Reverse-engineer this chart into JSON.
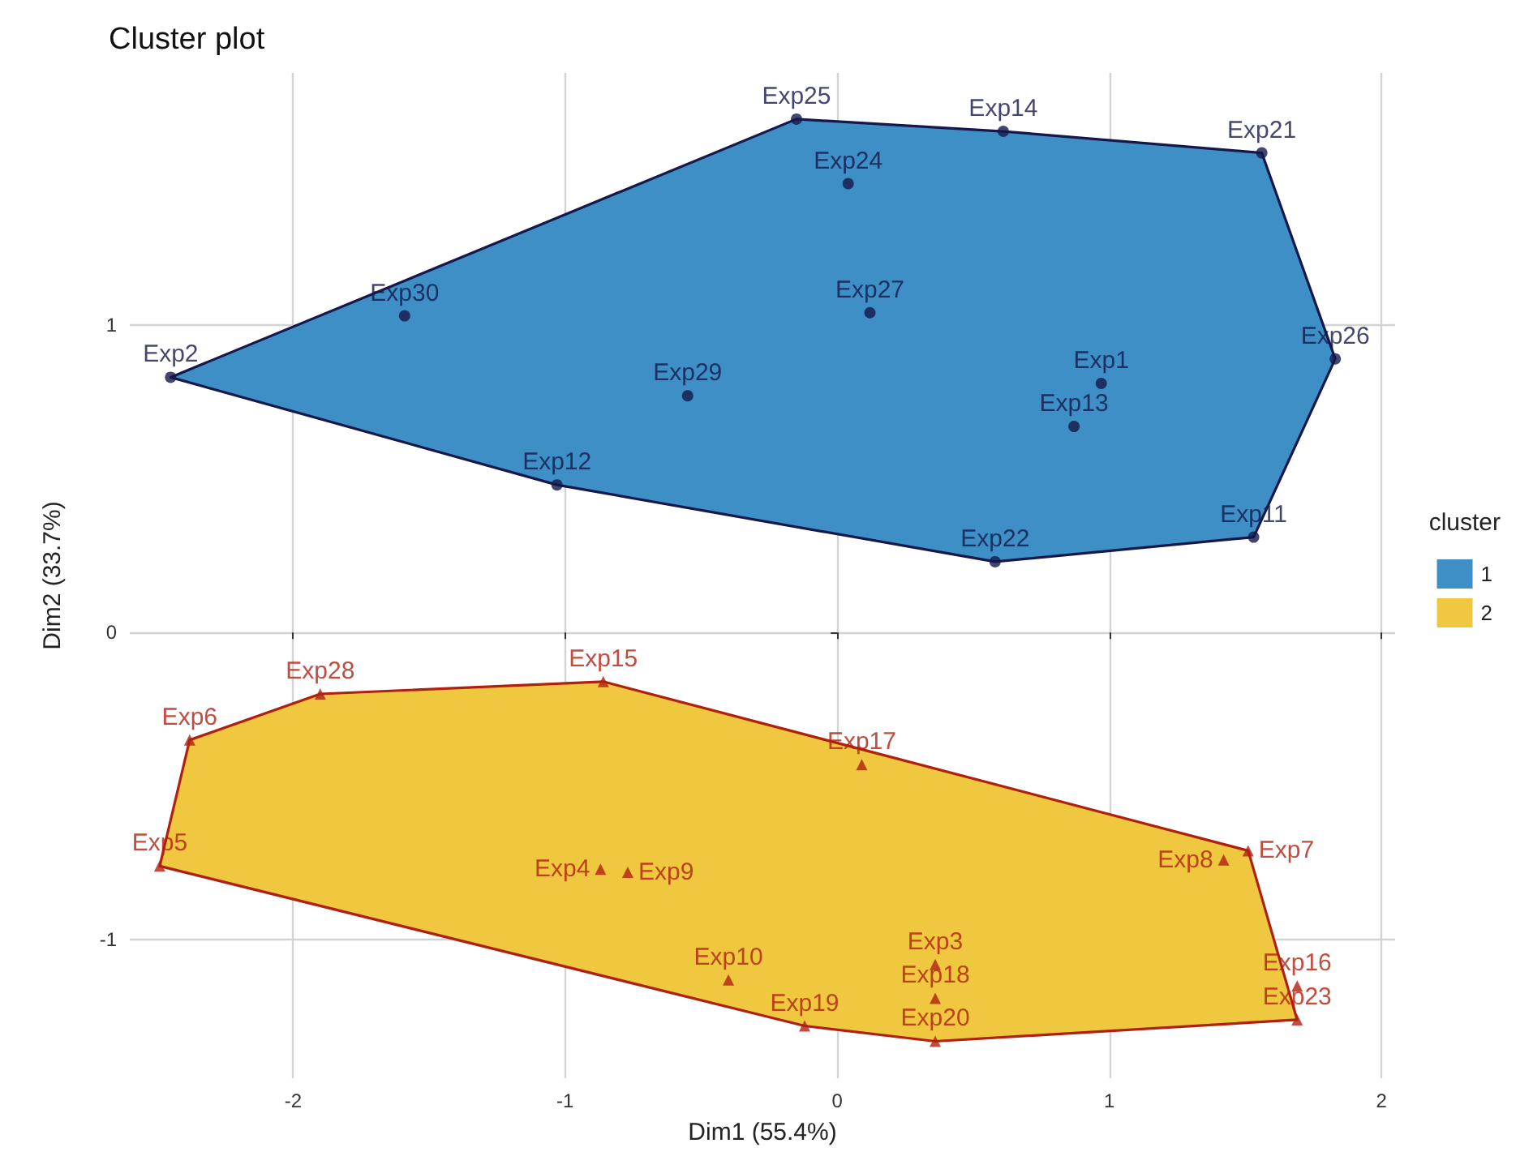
{
  "chart_data": {
    "type": "scatter",
    "title": "Cluster plot",
    "xlabel": "Dim1 (55.4%)",
    "ylabel": "Dim2 (33.7%)",
    "legend_title": "cluster",
    "legend": "right",
    "grid": true,
    "xlim": [
      -2.6,
      2.05
    ],
    "ylim": [
      -1.45,
      1.82
    ],
    "xticks": [
      -2,
      -1,
      0,
      1,
      2
    ],
    "yticks": [
      -1,
      0,
      1
    ],
    "series": [
      {
        "type": "area",
        "name": "1",
        "color": "#3d8fc6",
        "x": [
          -2.45,
          -0.15,
          0.61,
          1.56,
          1.83,
          1.53,
          0.58,
          -1.03
        ],
        "values": [
          0.83,
          1.67,
          1.63,
          1.56,
          0.89,
          0.31,
          0.23,
          0.48
        ]
      },
      {
        "type": "area",
        "name": "2",
        "color": "#efc840",
        "x": [
          -2.49,
          -2.38,
          -1.9,
          -0.86,
          1.51,
          1.69,
          0.36,
          -0.12
        ],
        "values": [
          -0.76,
          -0.35,
          -0.2,
          -0.16,
          -0.71,
          -1.26,
          -1.33,
          -1.28
        ]
      },
      {
        "color": "#14184a",
        "marker": "circle",
        "x": [
          -2.45,
          -1.59,
          -1.03,
          -0.55,
          -0.15,
          0.04,
          0.12,
          0.61,
          1.56,
          1.83,
          0.97,
          0.87,
          0.58,
          1.53
        ],
        "values": [
          0.83,
          1.03,
          0.48,
          0.77,
          1.67,
          1.46,
          1.04,
          1.63,
          1.56,
          0.89,
          0.81,
          0.67,
          0.23,
          0.31
        ],
        "value_labels": [
          "Exp2",
          "Exp30",
          "Exp12",
          "Exp29",
          "Exp25",
          "Exp24",
          "Exp27",
          "Exp14",
          "Exp21",
          "Exp26",
          "Exp1",
          "Exp13",
          "Exp22",
          "Exp11"
        ]
      },
      {
        "color": "#b0200f",
        "marker": "triangle",
        "x": [
          -2.38,
          -1.9,
          -0.86,
          -2.49,
          -0.87,
          -0.77,
          -0.4,
          -0.12,
          0.09,
          0.36,
          0.36,
          0.36,
          1.42,
          1.51,
          1.69,
          1.69
        ],
        "values": [
          -0.35,
          -0.2,
          -0.16,
          -0.76,
          -0.77,
          -0.78,
          -1.13,
          -1.28,
          -0.43,
          -1.08,
          -1.19,
          -1.33,
          -0.74,
          -0.71,
          -1.15,
          -1.26
        ],
        "value_labels": [
          "Exp6",
          "Exp28",
          "Exp15",
          "Exp5",
          "Exp4",
          "Exp9",
          "Exp10",
          "Exp19",
          "Exp17",
          "Exp3",
          "Exp18",
          "Exp20",
          "Exp8",
          "Exp7",
          "Exp16",
          "Exp23"
        ]
      }
    ]
  }
}
